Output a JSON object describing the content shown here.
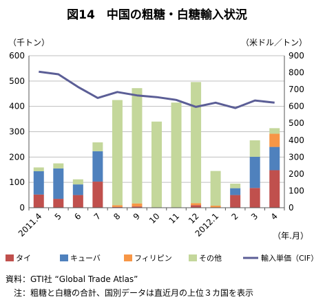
{
  "chart_data": {
    "type": "bar",
    "title": "図14　中国の粗糖・白糖輸入状況",
    "left_unit": "（千トン）",
    "right_unit": "（米ドル／トン）",
    "xlabel": "（年.月）",
    "categories": [
      "2011.4",
      "5",
      "6",
      "7",
      "8",
      "9",
      "10",
      "11",
      "12",
      "2012.1",
      "2",
      "3",
      "4"
    ],
    "ylim_left": [
      0,
      600
    ],
    "left_ticks": [
      "0",
      "100",
      "200",
      "300",
      "400",
      "500",
      "600"
    ],
    "ylim_right": [
      0,
      900
    ],
    "right_ticks": [
      "0",
      "100",
      "200",
      "300",
      "400",
      "500",
      "600",
      "700",
      "800",
      "900"
    ],
    "stacked": true,
    "series": [
      {
        "name": "タイ",
        "axis": "left",
        "color": "#c0504d",
        "values": [
          52,
          35,
          50,
          103,
          3,
          5,
          0,
          0,
          10,
          0,
          50,
          78,
          148
        ]
      },
      {
        "name": "キューバ",
        "axis": "left",
        "color": "#4f81bd",
        "values": [
          92,
          120,
          42,
          120,
          0,
          0,
          0,
          0,
          0,
          0,
          27,
          123,
          92
        ]
      },
      {
        "name": "フィリピン",
        "axis": "left",
        "color": "#f79646",
        "values": [
          0,
          0,
          0,
          0,
          7,
          12,
          0,
          0,
          8,
          8,
          0,
          0,
          52
        ]
      },
      {
        "name": "その他",
        "axis": "left",
        "color": "#c4d79b",
        "values": [
          15,
          20,
          20,
          35,
          415,
          455,
          340,
          415,
          478,
          137,
          18,
          65,
          22
        ]
      },
      {
        "name": "輸入単価（CIF）",
        "axis": "right",
        "type": "line",
        "color": "#5b5e96",
        "values": [
          805,
          790,
          715,
          650,
          685,
          665,
          655,
          638,
          597,
          622,
          590,
          635,
          622
        ]
      }
    ],
    "grid": true,
    "legend": "bottom"
  },
  "notes": {
    "source": "資料：GTI社 “Global Trade Atlas”",
    "note": "注：粗糖と白糖の合計、国別データは直近月の上位３カ国を表示"
  }
}
